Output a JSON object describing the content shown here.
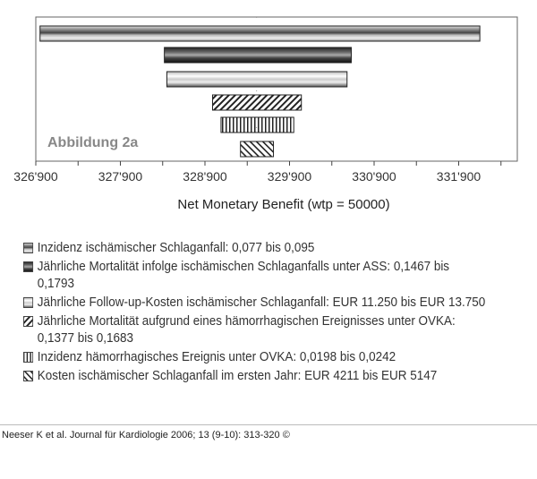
{
  "chart_data": {
    "type": "bar",
    "orientation": "horizontal",
    "subtype": "tornado",
    "title": "",
    "annotation": "Abbildung  2a",
    "xlabel": "Net Monetary Benefit (wtp = 50000)",
    "xlim": [
      326900,
      332500
    ],
    "xticks": [
      "326'900",
      "327'900",
      "328'900",
      "329'900",
      "330'900",
      "331'900"
    ],
    "xtick_values": [
      326900,
      327900,
      328900,
      329900,
      330900,
      331900
    ],
    "base_value": 329510,
    "grid": false,
    "legend_position": "bottom",
    "series": [
      {
        "name": "Inzidenz ischämischer Schlaganfall: 0,077 bis 0,095",
        "low": 326950,
        "high": 332150,
        "pattern": "gradient-gray"
      },
      {
        "name": "Jährliche Mortalität infolge ischämischen Schlaganfalls unter ASS: 0,1467 bis 0,1793",
        "low": 328420,
        "high": 330630,
        "pattern": "gradient-dark"
      },
      {
        "name": "Jährliche Follow-up-Kosten ischämischer Schlaganfall: EUR 11.250 bis EUR 13.750",
        "low": 328450,
        "high": 330580,
        "pattern": "gradient-light"
      },
      {
        "name": "Jährliche Mortalität aufgrund eines hämorrhagischen Ereignisses unter OVKA: 0,1377 bis 0,1683",
        "low": 328990,
        "high": 330040,
        "pattern": "diag-back"
      },
      {
        "name": "Inzidenz hämorrhagisches Ereignis unter OVKA: 0,0198 bis 0,0242",
        "low": 329090,
        "high": 329950,
        "pattern": "vertical"
      },
      {
        "name": "Kosten ischämischer Schlaganfall im ersten Jahr: EUR 4211 bis EUR 5147",
        "low": 329320,
        "high": 329710,
        "pattern": "diag-fwd"
      }
    ]
  },
  "footer": "Neeser K et al. Journal für Kardiologie 2006; 13 (9-10): 313-320 ©"
}
